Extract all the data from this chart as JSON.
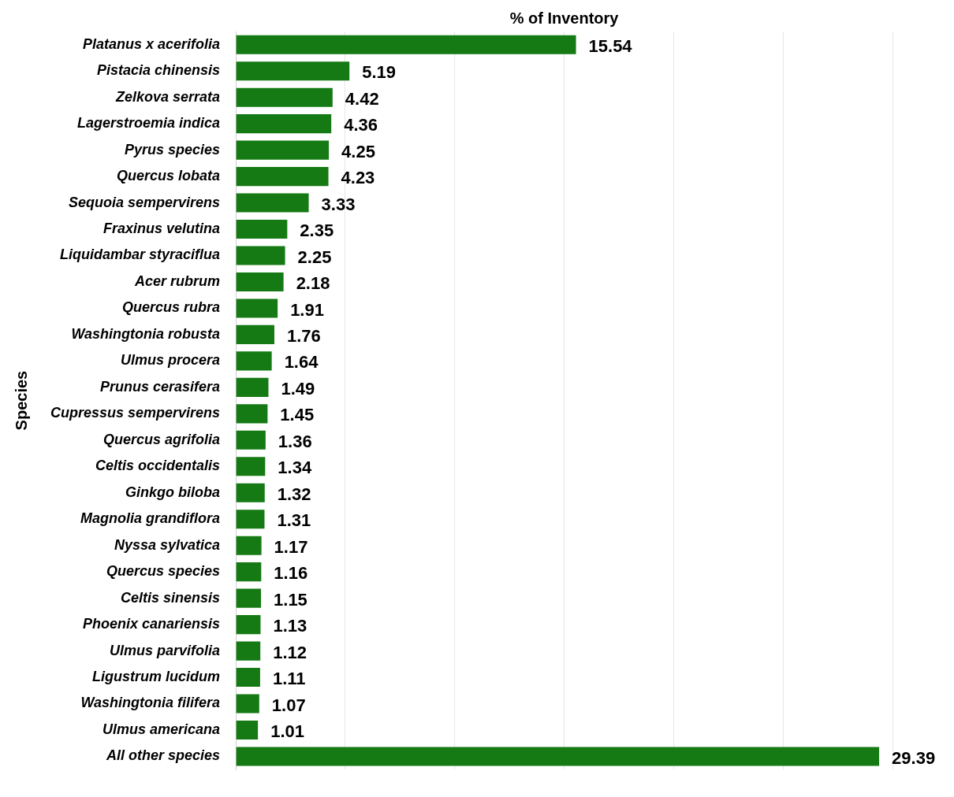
{
  "chart_data": {
    "type": "bar",
    "orientation": "horizontal",
    "xlabel": "% of Inventory",
    "ylabel": "Species",
    "categories": [
      "Platanus x acerifolia",
      "Pistacia chinensis",
      "Zelkova serrata",
      "Lagerstroemia indica",
      "Pyrus species",
      "Quercus lobata",
      "Sequoia sempervirens",
      "Fraxinus velutina",
      "Liquidambar styraciflua",
      "Acer rubrum",
      "Quercus rubra",
      "Washingtonia robusta",
      "Ulmus procera",
      "Prunus cerasifera",
      "Cupressus sempervirens",
      "Quercus agrifolia",
      "Celtis occidentalis",
      "Ginkgo biloba",
      "Magnolia grandiflora",
      "Nyssa sylvatica",
      "Quercus species",
      "Celtis sinensis",
      "Phoenix canariensis",
      "Ulmus parvifolia",
      "Ligustrum lucidum",
      "Washingtonia filifera",
      "Ulmus americana",
      "All other species"
    ],
    "values": [
      15.54,
      5.19,
      4.42,
      4.36,
      4.25,
      4.23,
      3.33,
      2.35,
      2.25,
      2.18,
      1.91,
      1.76,
      1.64,
      1.49,
      1.45,
      1.36,
      1.34,
      1.32,
      1.31,
      1.17,
      1.16,
      1.15,
      1.13,
      1.12,
      1.11,
      1.07,
      1.01,
      29.39
    ],
    "color": "#157a13",
    "xlim": [
      0,
      30
    ],
    "xticks": [
      {
        "value": 0,
        "label": null
      },
      {
        "value": 5,
        "label": null
      },
      {
        "value": 10,
        "label": null
      },
      {
        "value": 15,
        "label": null
      },
      {
        "value": 20,
        "label": null
      },
      {
        "value": 25,
        "label": null
      },
      {
        "value": 30,
        "label": null
      }
    ],
    "grid": "x",
    "tick_labels": "y",
    "data_labels": true,
    "legend": false
  }
}
